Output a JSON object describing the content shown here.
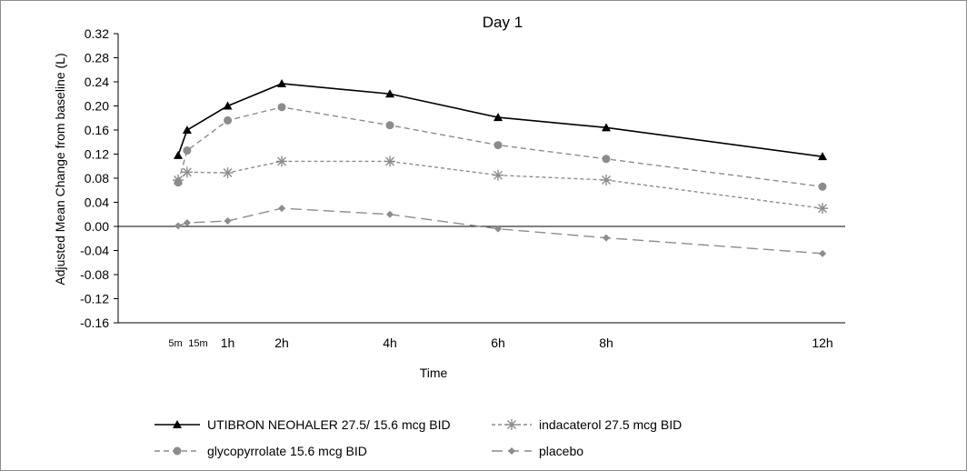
{
  "chart_data": {
    "type": "line",
    "title": "Day 1",
    "xlabel": "Time",
    "ylabel": "Adjusted Mean Change from baseline (L)",
    "ylim": [
      -0.16,
      0.32
    ],
    "y_ticks": [
      "0.32",
      "0.28",
      "0.24",
      "0.20",
      "0.16",
      "0.12",
      "0.08",
      "0.04",
      "0.00",
      "-0.04",
      "-0.08",
      "-0.12",
      "-0.16"
    ],
    "x": [
      0.0833,
      0.25,
      1,
      2,
      4,
      6,
      8,
      12
    ],
    "x_tick_labels": [
      "5m",
      "15m",
      "1h",
      "2h",
      "4h",
      "6h",
      "8h",
      "12h"
    ],
    "legend_position": "bottom",
    "series": [
      {
        "name": "UTIBRON NEOHALER 27.5/ 15.6 mcg BID",
        "marker": "triangle",
        "line": "solid",
        "color": "#000000",
        "values": [
          0.118,
          0.16,
          0.2,
          0.237,
          0.22,
          0.181,
          0.164,
          0.116
        ]
      },
      {
        "name": "indacaterol 27.5 mcg BID",
        "marker": "asterisk",
        "line": "dotted",
        "color": "#8c8c8c",
        "values": [
          0.077,
          0.09,
          0.089,
          0.108,
          0.108,
          0.085,
          0.077,
          0.03
        ]
      },
      {
        "name": "glycopyrrolate 15.6 mcg BID",
        "marker": "circle",
        "line": "dashed",
        "color": "#8c8c8c",
        "values": [
          0.073,
          0.126,
          0.176,
          0.198,
          0.168,
          0.135,
          0.112,
          0.066
        ]
      },
      {
        "name": "placebo",
        "marker": "diamond",
        "line": "longdash",
        "color": "#8c8c8c",
        "values": [
          0.001,
          0.006,
          0.009,
          0.03,
          0.02,
          -0.004,
          -0.019,
          -0.045
        ]
      }
    ]
  }
}
